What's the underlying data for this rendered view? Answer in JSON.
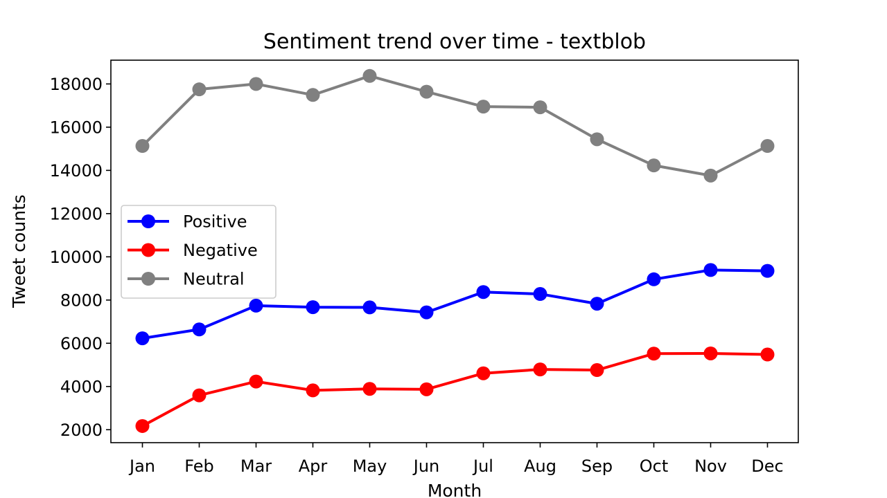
{
  "chart_data": {
    "type": "line",
    "title": "Sentiment trend over time - textblob",
    "xlabel": "Month",
    "ylabel": "Tweet counts",
    "categories": [
      "Jan",
      "Feb",
      "Mar",
      "Apr",
      "May",
      "Jun",
      "Jul",
      "Aug",
      "Sep",
      "Oct",
      "Nov",
      "Dec"
    ],
    "yticks": [
      2000,
      4000,
      6000,
      8000,
      10000,
      12000,
      14000,
      16000,
      18000
    ],
    "ylim": [
      1400,
      19100
    ],
    "grid": false,
    "legend_position": "center-left",
    "series": [
      {
        "name": "Positive",
        "color": "#0000ff",
        "values": [
          6230,
          6640,
          7740,
          7670,
          7660,
          7430,
          8370,
          8280,
          7830,
          8960,
          9390,
          9350
        ]
      },
      {
        "name": "Negative",
        "color": "#ff0000",
        "values": [
          2170,
          3590,
          4230,
          3820,
          3890,
          3870,
          4610,
          4790,
          4760,
          5520,
          5530,
          5480
        ]
      },
      {
        "name": "Neutral",
        "color": "#808080",
        "values": [
          15130,
          17750,
          18000,
          17490,
          18370,
          17640,
          16950,
          16920,
          15440,
          14230,
          13760,
          15130
        ]
      }
    ]
  }
}
